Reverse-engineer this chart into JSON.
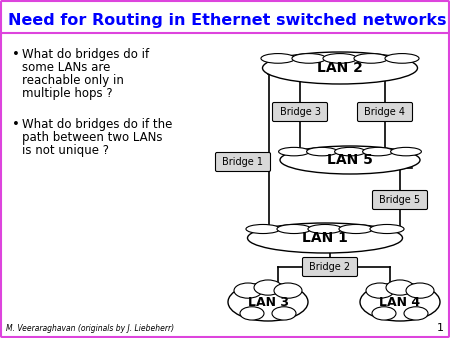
{
  "title": "Need for Routing in Ethernet switched networks",
  "title_color": "#0000ff",
  "title_fontsize": 11.5,
  "bg_color": "#ffffff",
  "border_color": "#dd44dd",
  "bullet1_line1": "What do bridges do if",
  "bullet1_line2": "some LANs are",
  "bullet1_line3": "reachable only in",
  "bullet1_line4": "multiple hops ?",
  "bullet2_line1": "What do bridges do if the",
  "bullet2_line2": "path between two LANs",
  "bullet2_line3": "is not unique ?",
  "bullet_fontsize": 8.5,
  "footer": "M. Veeraraghavan (originals by J. Liebeherr)",
  "footer_fontsize": 5.5,
  "page_num": "1"
}
